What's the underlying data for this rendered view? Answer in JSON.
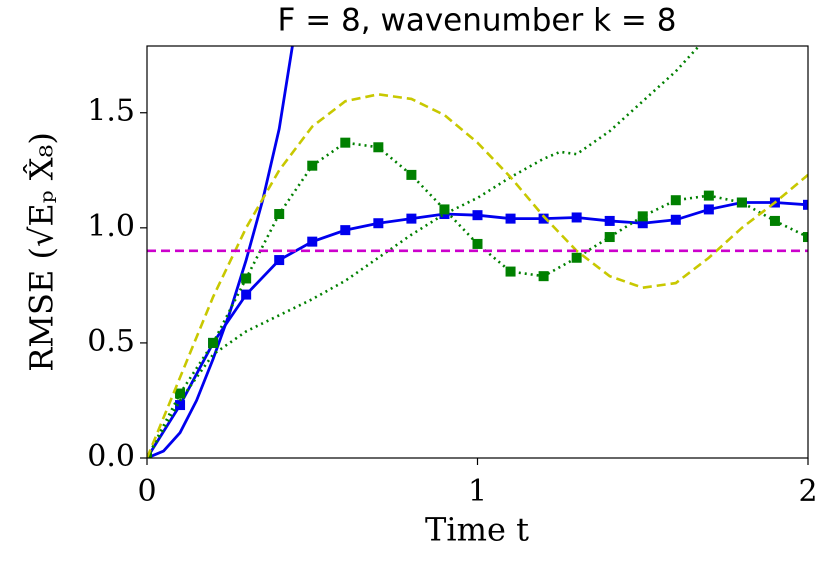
{
  "chart_data": {
    "type": "line",
    "title": "F = 8, wavenumber k = 8",
    "xlabel": "Time t",
    "ylabel": "RMSE (√Eₚ X̂₈)",
    "xlim": [
      0,
      2
    ],
    "ylim": [
      0,
      1.79
    ],
    "xticks": [
      0,
      1,
      2
    ],
    "yticks": [
      {
        "value": 0,
        "label": "0.0"
      },
      0.5,
      {
        "value": 1,
        "label": "1.0"
      },
      1.5
    ],
    "series": [
      {
        "color": "#0000ee",
        "style": "solid",
        "marker": "none",
        "x": [
          0,
          0.05,
          0.1,
          0.15,
          0.2,
          0.25,
          0.3,
          0.35,
          0.4,
          0.44
        ],
        "values": [
          0,
          0.03,
          0.11,
          0.25,
          0.43,
          0.63,
          0.86,
          1.12,
          1.43,
          1.79
        ]
      },
      {
        "color": "#0000ee",
        "style": "solid",
        "marker": "square",
        "x": [
          0,
          0.1,
          0.2,
          0.3,
          0.4,
          0.5,
          0.6,
          0.7,
          0.8,
          0.9,
          1.0,
          1.1,
          1.2,
          1.3,
          1.4,
          1.5,
          1.6,
          1.7,
          1.8,
          1.9,
          2.0
        ],
        "values": [
          0,
          0.23,
          0.5,
          0.71,
          0.86,
          0.94,
          0.99,
          1.02,
          1.04,
          1.06,
          1.055,
          1.04,
          1.04,
          1.045,
          1.03,
          1.02,
          1.035,
          1.08,
          1.11,
          1.11,
          1.1
        ]
      },
      {
        "color": "#008000",
        "style": "dotted",
        "marker": "square",
        "x": [
          0,
          0.1,
          0.2,
          0.3,
          0.4,
          0.5,
          0.6,
          0.7,
          0.8,
          0.9,
          1.0,
          1.1,
          1.2,
          1.3,
          1.4,
          1.5,
          1.6,
          1.7,
          1.8,
          1.9,
          2.0
        ],
        "values": [
          0,
          0.28,
          0.5,
          0.78,
          1.06,
          1.27,
          1.37,
          1.35,
          1.23,
          1.08,
          0.93,
          0.81,
          0.79,
          0.87,
          0.96,
          1.05,
          1.12,
          1.14,
          1.11,
          1.03,
          0.96
        ]
      },
      {
        "color": "#008000",
        "style": "dotted",
        "marker": "none",
        "x": [
          0,
          0.1,
          0.2,
          0.3,
          0.4,
          0.5,
          0.6,
          0.7,
          0.8,
          0.9,
          1.0,
          1.1,
          1.2,
          1.25,
          1.3,
          1.4,
          1.5,
          1.6,
          1.67
        ],
        "values": [
          0,
          0.25,
          0.45,
          0.55,
          0.62,
          0.69,
          0.77,
          0.87,
          0.97,
          1.06,
          1.13,
          1.22,
          1.3,
          1.33,
          1.32,
          1.42,
          1.55,
          1.68,
          1.79
        ]
      },
      {
        "color": "#c8c800",
        "style": "dashed",
        "marker": "none",
        "x": [
          0,
          0.1,
          0.2,
          0.3,
          0.4,
          0.5,
          0.6,
          0.7,
          0.8,
          0.9,
          1.0,
          1.1,
          1.2,
          1.3,
          1.4,
          1.5,
          1.6,
          1.7,
          1.8,
          1.9,
          2.0
        ],
        "values": [
          0,
          0.35,
          0.7,
          1.0,
          1.25,
          1.44,
          1.55,
          1.58,
          1.56,
          1.49,
          1.37,
          1.22,
          1.05,
          0.9,
          0.79,
          0.74,
          0.76,
          0.87,
          1.0,
          1.11,
          1.23
        ]
      },
      {
        "color": "#cc00cc",
        "style": "dashed",
        "marker": "none",
        "x": [
          0,
          2
        ],
        "values": [
          0.9,
          0.9
        ]
      }
    ]
  }
}
